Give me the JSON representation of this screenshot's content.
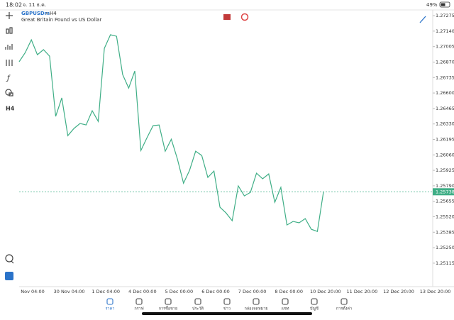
{
  "status_bar": {
    "time": "18:02",
    "date": "จ. 11 ธ.ค.",
    "battery": "49%"
  },
  "toolbar": {
    "timeframe": "H4"
  },
  "chart_data": {
    "type": "line",
    "symbol": "GBPUSDm",
    "timeframe": "H4",
    "description": "Great Britain Pound vs US Dollar",
    "color": "#3fae86",
    "values": [
      1.26873,
      1.26953,
      1.27064,
      1.26934,
      1.26978,
      1.26922,
      1.26396,
      1.26557,
      1.26228,
      1.2629,
      1.26334,
      1.26321,
      1.26445,
      1.26352,
      1.2699,
      1.27108,
      1.27095,
      1.26761,
      1.26643,
      1.26792,
      1.26098,
      1.2621,
      1.26315,
      1.26321,
      1.26092,
      1.26197,
      1.26024,
      1.25813,
      1.25925,
      1.26092,
      1.26055,
      1.25863,
      1.25919,
      1.25603,
      1.25553,
      1.25485,
      1.25789,
      1.25702,
      1.25733,
      1.259,
      1.25851,
      1.25894,
      1.25646,
      1.25776,
      1.25448,
      1.25479,
      1.25467,
      1.25504,
      1.25411,
      1.25392,
      1.25738
    ],
    "ylim": [
      1.2491,
      1.27325
    ],
    "yticks": [
      {
        "value": 1.27275,
        "label": "1.27275"
      },
      {
        "value": 1.2714,
        "label": "1.27140"
      },
      {
        "value": 1.27005,
        "label": "1.27005"
      },
      {
        "value": 1.2687,
        "label": "1.26870"
      },
      {
        "value": 1.26735,
        "label": "1.26735"
      },
      {
        "value": 1.266,
        "label": "1.26600"
      },
      {
        "value": 1.26465,
        "label": "1.26465"
      },
      {
        "value": 1.2633,
        "label": "1.26330"
      },
      {
        "value": 1.26195,
        "label": "1.26195"
      },
      {
        "value": 1.2606,
        "label": "1.26060"
      },
      {
        "value": 1.25925,
        "label": "1.25925"
      },
      {
        "value": 1.2579,
        "label": "1.25790"
      },
      {
        "value": 1.25655,
        "label": "1.25655"
      },
      {
        "value": 1.2552,
        "label": "1.25520"
      },
      {
        "value": 1.25385,
        "label": "1.25385"
      },
      {
        "value": 1.2525,
        "label": "1.25250"
      },
      {
        "value": 1.25115,
        "label": "1.25115"
      }
    ],
    "x_labels": [
      "Nov 04:00",
      "30 Nov 04:00",
      "1 Dec 04:00",
      "4 Dec 00:00",
      "5 Dec 00:00",
      "6 Dec 00:00",
      "7 Dec 00:00",
      "8 Dec 00:00",
      "10 Dec 20:00",
      "11 Dec 20:00",
      "12 Dec 20:00",
      "13 Dec 20:00"
    ],
    "last_price": 1.25738
  },
  "nav": {
    "items": [
      "ราคา",
      "กราฟ",
      "การซื้อขาย",
      "ประวัติ",
      "ข่าว",
      "กล่องจดหมาย",
      "แชท",
      "บัญชี",
      "การตั้งค่า"
    ]
  }
}
